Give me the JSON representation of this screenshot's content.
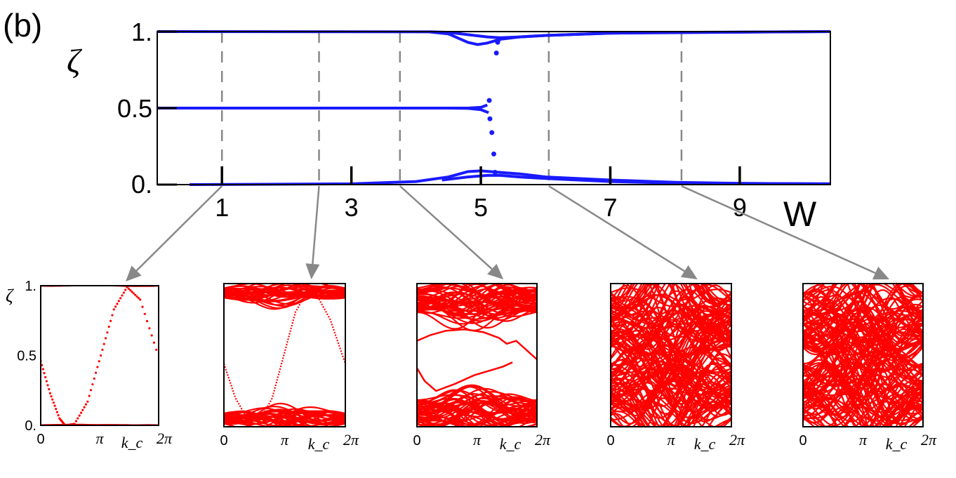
{
  "panel_label": "(b)",
  "chart_data": [
    {
      "type": "scatter",
      "ylabel": "ζ",
      "xlabel": "W",
      "xlim": [
        0,
        10.4
      ],
      "ylim": [
        0,
        1
      ],
      "xticks": [
        1,
        3,
        5,
        7,
        9
      ],
      "xtick_labels": [
        "1",
        "3",
        "5",
        "7",
        "9"
      ],
      "yticks": [
        0,
        0.5,
        1
      ],
      "ytick_labels": [
        "0.",
        "0.5",
        "1."
      ],
      "grid": false,
      "markers": {
        "W": [
          1.0,
          2.5,
          3.75,
          6.05,
          8.1
        ],
        "style": "dashed vertical lines"
      },
      "series": [
        {
          "values": [
            [
              0,
              1.0
            ],
            [
              4.2,
              0.998
            ],
            [
              4.5,
              0.985
            ],
            [
              4.8,
              0.93
            ],
            [
              4.95,
              0.915
            ],
            [
              5.1,
              0.925
            ],
            [
              5.3,
              0.95
            ],
            [
              5.6,
              0.965
            ],
            [
              6,
              0.975
            ],
            [
              7,
              0.99
            ],
            [
              8,
              0.995
            ],
            [
              10.4,
              1.0
            ]
          ]
        },
        {
          "values": [
            [
              4.2,
              0.999
            ],
            [
              4.5,
              0.995
            ],
            [
              4.8,
              0.98
            ],
            [
              5.1,
              0.965
            ],
            [
              5.3,
              0.96
            ],
            [
              5.6,
              0.965
            ],
            [
              6,
              0.975
            ],
            [
              7,
              0.99
            ],
            [
              10.4,
              1.0
            ]
          ]
        },
        {
          "values": [
            [
              0,
              0.5
            ],
            [
              4.5,
              0.5
            ],
            [
              4.8,
              0.5
            ],
            [
              5.0,
              0.505
            ],
            [
              5.1,
              0.52
            ]
          ]
        },
        {
          "values": [
            [
              0,
              0.5
            ],
            [
              4.5,
              0.5
            ],
            [
              4.8,
              0.498
            ],
            [
              5.0,
              0.49
            ],
            [
              5.12,
              0.47
            ]
          ]
        },
        {
          "values": [
            [
              0.5,
              0.0
            ],
            [
              3,
              0.005
            ],
            [
              4,
              0.02
            ],
            [
              4.5,
              0.05
            ],
            [
              4.8,
              0.085
            ],
            [
              5.0,
              0.09
            ],
            [
              5.3,
              0.08
            ],
            [
              5.6,
              0.07
            ],
            [
              6,
              0.05
            ],
            [
              7,
              0.03
            ],
            [
              8,
              0.015
            ],
            [
              9,
              0.008
            ],
            [
              10.4,
              0.005
            ]
          ]
        },
        {
          "values": [
            [
              4.4,
              0.03
            ],
            [
              4.8,
              0.05
            ],
            [
              5.1,
              0.06
            ],
            [
              5.3,
              0.06
            ],
            [
              5.6,
              0.05
            ],
            [
              6,
              0.04
            ],
            [
              7,
              0.02
            ],
            [
              8,
              0.01
            ],
            [
              10.4,
              0.005
            ]
          ]
        },
        {
          "values": [
            [
              5.13,
              0.55
            ],
            [
              5.14,
              0.43
            ],
            [
              5.17,
              0.34
            ],
            [
              5.2,
              0.2
            ],
            [
              5.22,
              0.08
            ],
            [
              5.24,
              0.86
            ],
            [
              5.26,
              0.93
            ],
            [
              5.28,
              0.95
            ]
          ]
        }
      ]
    },
    {
      "type": "line",
      "W": 1,
      "ylabel": "ζ",
      "xlabel": "k_c",
      "xlim": [
        0,
        6.283
      ],
      "ylim": [
        0,
        1
      ],
      "xtick_labels": [
        "0",
        "π",
        "2π"
      ],
      "ytick_labels": [
        "0.",
        "0.5",
        "1."
      ],
      "series": [
        {
          "values": [
            [
              0,
              0.46
            ],
            [
              0.5,
              0.23
            ],
            [
              1,
              0.05
            ],
            [
              1.3,
              0.0
            ],
            [
              1.8,
              0.01
            ],
            [
              2.5,
              0.17
            ],
            [
              3.2,
              0.5
            ],
            [
              3.9,
              0.83
            ],
            [
              4.6,
              0.99
            ],
            [
              5.3,
              0.9
            ],
            [
              6.283,
              0.49
            ]
          ]
        }
      ],
      "bands": [
        0.0,
        1.0
      ]
    },
    {
      "type": "line",
      "W": 2.5,
      "xlabel": "k_c",
      "xlim": [
        0,
        6.283
      ],
      "ylim": [
        0,
        1
      ],
      "xtick_labels": [
        "0",
        "π",
        "2π"
      ],
      "series": [
        {
          "values": [
            [
              0,
              0.44
            ],
            [
              0.6,
              0.2
            ],
            [
              1.2,
              0.06
            ],
            [
              1.8,
              0.03
            ],
            [
              2.5,
              0.2
            ],
            [
              3.1,
              0.5
            ],
            [
              3.7,
              0.8
            ],
            [
              4.2,
              0.92
            ],
            [
              4.8,
              0.92
            ],
            [
              5.5,
              0.75
            ],
            [
              6.283,
              0.44
            ]
          ]
        }
      ],
      "bands": [
        0.06,
        0.93
      ]
    },
    {
      "type": "line",
      "W": 3.75,
      "xlabel": "k_c",
      "xlim": [
        0,
        6.283
      ],
      "ylim": [
        0,
        1
      ],
      "xtick_labels": [
        "0",
        "π",
        "2π"
      ],
      "series": [
        {
          "values": [
            [
              0,
              0.41
            ],
            [
              0.4,
              0.32
            ],
            [
              1,
              0.25
            ],
            [
              2,
              0.3
            ],
            [
              3,
              0.36
            ],
            [
              4,
              0.4
            ],
            [
              4.5,
              0.42
            ],
            [
              5,
              0.45
            ]
          ]
        },
        {
          "values": [
            [
              0,
              0.6
            ],
            [
              0.7,
              0.64
            ],
            [
              1.5,
              0.67
            ],
            [
              2.5,
              0.68
            ],
            [
              3.5,
              0.66
            ],
            [
              4.3,
              0.62
            ],
            [
              4.7,
              0.58
            ],
            [
              5.2,
              0.6
            ],
            [
              6.283,
              0.47
            ]
          ]
        }
      ],
      "bands": [
        0.1,
        0.9
      ]
    },
    {
      "type": "line",
      "W": 6.05,
      "xlabel": "k_c",
      "xlim": [
        0,
        6.283
      ],
      "ylim": [
        0,
        1
      ],
      "xtick_labels": [
        "0",
        "π",
        "2π"
      ]
    },
    {
      "type": "line",
      "W": 8.1,
      "xlabel": "k_c",
      "xlim": [
        0,
        6.283
      ],
      "ylim": [
        0,
        1
      ],
      "xtick_labels": [
        "0",
        "π",
        "2π"
      ]
    }
  ],
  "colors": {
    "main": "#1a1aff",
    "inset": "#ff0000",
    "dash": "#888888",
    "arrow": "#888888"
  }
}
